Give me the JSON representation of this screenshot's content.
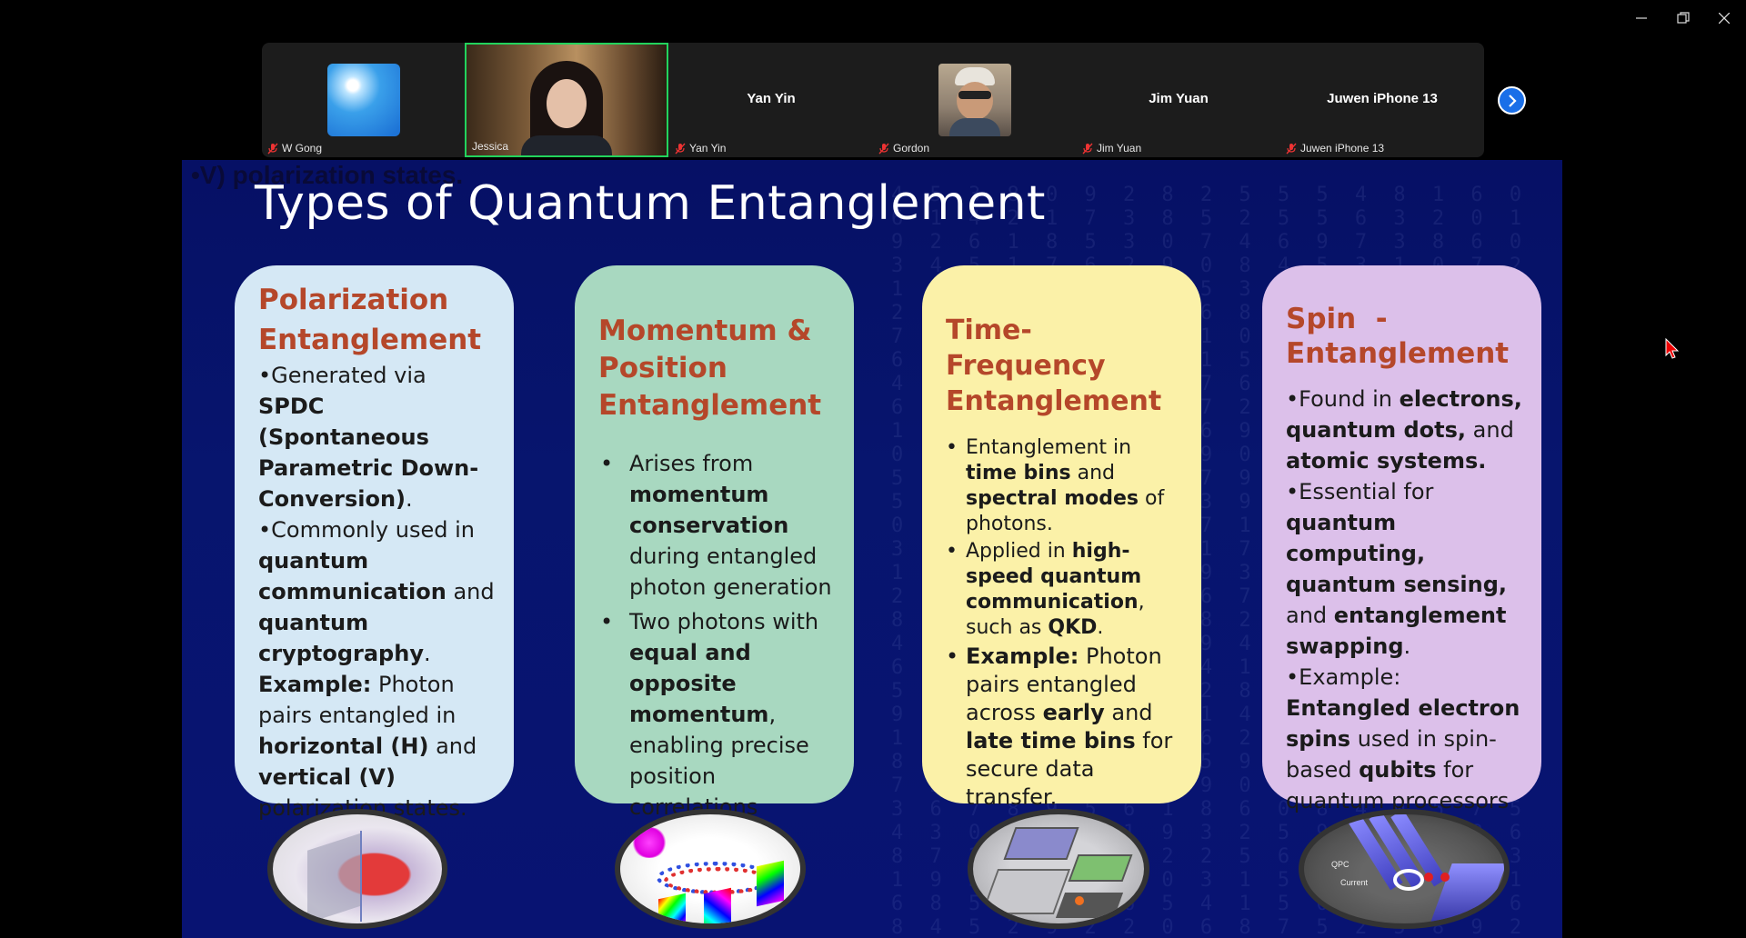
{
  "window": {
    "minimize_icon": "minimize-icon",
    "restore_icon": "restore-icon",
    "close_icon": "close-icon"
  },
  "participants": [
    {
      "name": "W Gong",
      "muted": true,
      "has_video": true
    },
    {
      "name": "Jessica",
      "muted": false,
      "has_video": true,
      "active_speaker": true
    },
    {
      "name": "Yan Yin",
      "center_name": "Yan Yin",
      "muted": true,
      "has_video": false
    },
    {
      "name": "Gordon",
      "muted": true,
      "has_video": true
    },
    {
      "name": "Jim Yuan",
      "center_name": "Jim Yuan",
      "muted": true,
      "has_video": false
    },
    {
      "name": "Juwen iPhone 13",
      "center_name": "Juwen iPhone 13",
      "muted": true,
      "has_video": false
    }
  ],
  "ghost_text": "•V) polarization states.",
  "slide": {
    "title": "Types of Quantum Entanglement",
    "cards": [
      {
        "heading": "Polarization Entanglement",
        "b1_pre": "•Generated via ",
        "b1_bold": "SPDC (Spontaneous Parametric Down-Conversion)",
        "b1_post": ".",
        "b2_pre": "•Commonly used in ",
        "b2_bold1": "quantum communication",
        "b2_mid": " and ",
        "b2_bold2": "quantum cryptography",
        "b2_post": ".",
        "ex_label": "Example:",
        "ex_pre": " Photon pairs entangled in ",
        "ex_bold1": "horizontal (H)",
        "ex_mid": " and ",
        "ex_bold2": "vertical (V)",
        "ex_post": " polarization states."
      },
      {
        "heading": "Momentum & Position Entanglement",
        "b1_pre": "Arises from ",
        "b1_bold": "momentum conservation",
        "b1_post": " during entangled photon generation",
        "b2_pre": "Two photons with ",
        "b2_bold": "equal and opposite momentum",
        "b2_post": ", enabling precise position correlations"
      },
      {
        "heading": "Time-Frequency Entanglement",
        "b1_pre": "Entanglement in ",
        "b1_bold1": "time bins",
        "b1_mid": " and ",
        "b1_bold2": "spectral modes",
        "b1_post": " of photons.",
        "b2_pre": " Applied in ",
        "b2_bold": "high-speed quantum communication",
        "b2_mid": ", such as ",
        "b2_bold2": "QKD",
        "b2_post": ".",
        "b3_label": "Example:",
        "b3_pre": " Photon pairs entangled across ",
        "b3_bold1": "early",
        "b3_mid": " and ",
        "b3_bold2": "late time bins",
        "b3_post": " for secure data transfer."
      },
      {
        "heading": "Spin  - Entanglement",
        "b1_pre": "•Found in ",
        "b1_bold1": "electrons, quantum dots,",
        "b1_mid": " and ",
        "b1_bold2": "atomic systems.",
        "b2_pre": "•Essential for ",
        "b2_bold1": "quantum computing, quantum sensing,",
        "b2_mid": " and ",
        "b2_bold2": "entanglement swapping",
        "b2_post": ".",
        "b3_pre": "•Example: ",
        "b3_bold1": "Entangled electron spins",
        "b3_mid": " used in spin-based ",
        "b3_bold2": "qubits",
        "b3_post": " for quantum processors"
      }
    ]
  }
}
